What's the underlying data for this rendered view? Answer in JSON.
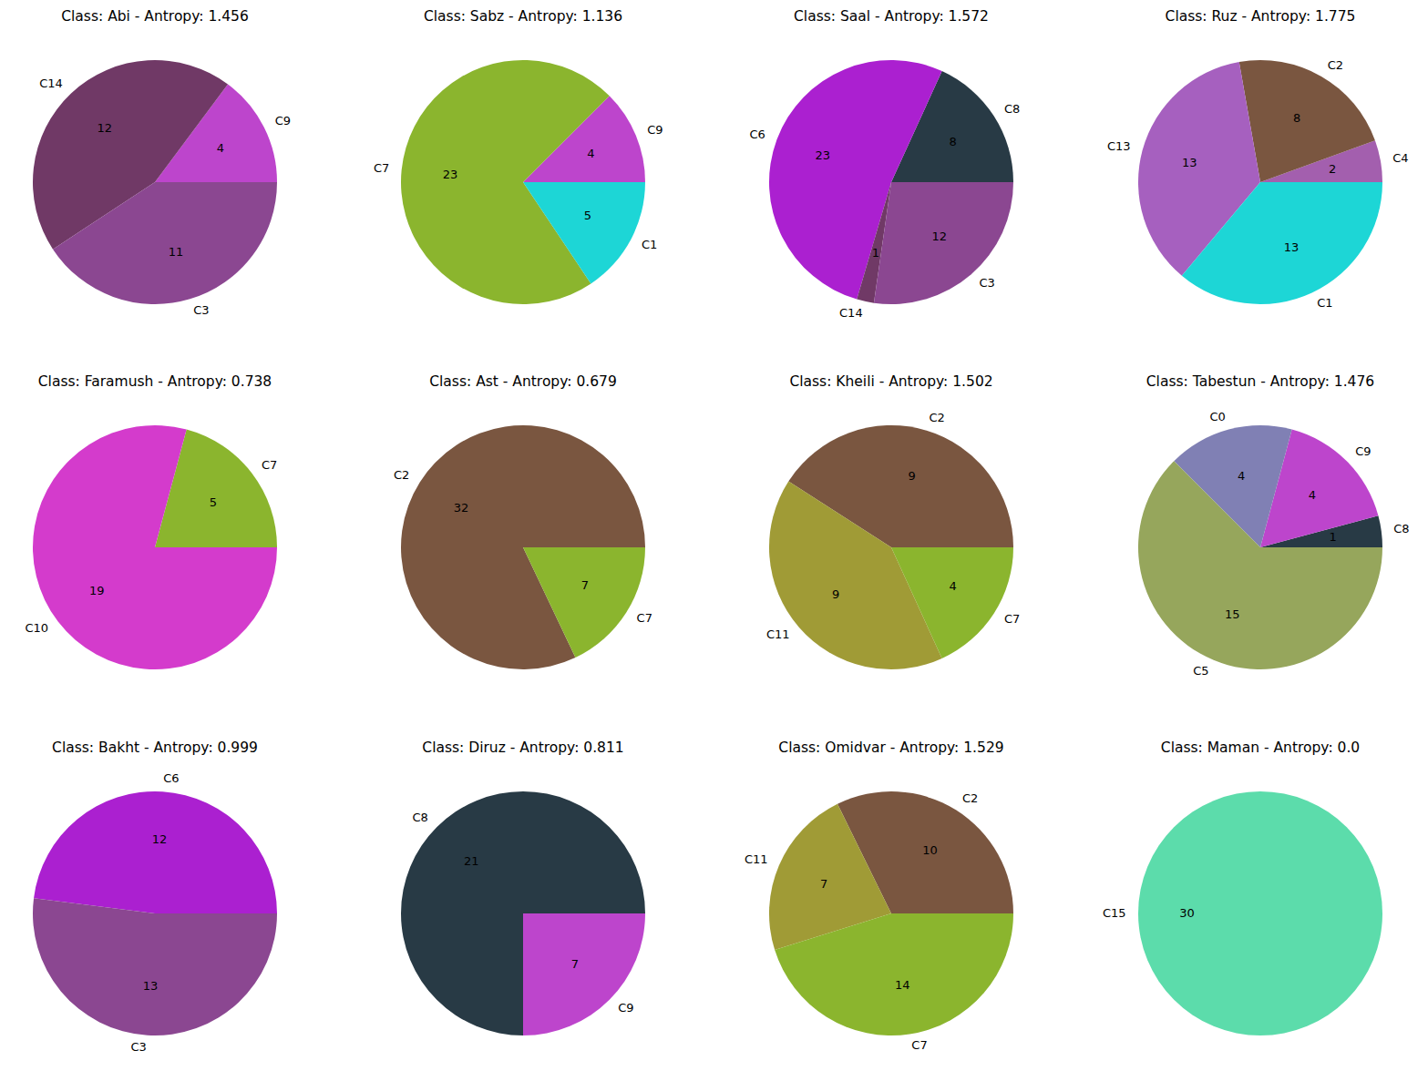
{
  "chart_data": [
    {
      "type": "pie",
      "title": "Class: Abi - Antropy: 1.456",
      "categories": [
        "C9",
        "C14",
        "C3"
      ],
      "values": [
        4,
        12,
        11
      ],
      "colors": [
        "#bd45cc",
        "#703966",
        "#8b4791"
      ],
      "data_labels": true
    },
    {
      "type": "pie",
      "title": "Class: Sabz - Antropy: 1.136",
      "categories": [
        "C9",
        "C7",
        "C1"
      ],
      "values": [
        4,
        23,
        5
      ],
      "colors": [
        "#bd45cc",
        "#8bb52e",
        "#1dd6d6"
      ],
      "data_labels": true
    },
    {
      "type": "pie",
      "title": "Class: Saal - Antropy: 1.572",
      "categories": [
        "C8",
        "C6",
        "C14",
        "C3"
      ],
      "values": [
        8,
        23,
        1,
        12
      ],
      "colors": [
        "#283a45",
        "#ab20d0",
        "#703966",
        "#8b4791"
      ],
      "data_labels": true
    },
    {
      "type": "pie",
      "title": "Class: Ruz - Antropy: 1.775",
      "categories": [
        "C4",
        "C2",
        "C13",
        "C1"
      ],
      "values": [
        2,
        8,
        13,
        13
      ],
      "colors": [
        "#a35fae",
        "#7a5640",
        "#a660bf",
        "#1dd6d6"
      ],
      "data_labels": true
    },
    {
      "type": "pie",
      "title": "Class: Faramush - Antropy: 0.738",
      "categories": [
        "C7",
        "C10"
      ],
      "values": [
        5,
        19
      ],
      "colors": [
        "#8bb52e",
        "#d43bcc"
      ],
      "data_labels": true
    },
    {
      "type": "pie",
      "title": "Class: Ast - Antropy: 0.679",
      "categories": [
        "C2",
        "C7"
      ],
      "values": [
        32,
        7
      ],
      "colors": [
        "#7a5640",
        "#8bb52e"
      ],
      "data_labels": true
    },
    {
      "type": "pie",
      "title": "Class: Kheili - Antropy: 1.502",
      "categories": [
        "C2",
        "C11",
        "C7"
      ],
      "values": [
        9,
        9,
        4
      ],
      "colors": [
        "#7a5640",
        "#a09b36",
        "#8bb52e"
      ],
      "data_labels": true
    },
    {
      "type": "pie",
      "title": "Class: Tabestun - Antropy: 1.476",
      "categories": [
        "C8",
        "C9",
        "C0",
        "C5"
      ],
      "values": [
        1,
        4,
        4,
        15
      ],
      "colors": [
        "#283a45",
        "#bd45cc",
        "#8080b4",
        "#96a65c"
      ],
      "data_labels": true
    },
    {
      "type": "pie",
      "title": "Class: Bakht - Antropy: 0.999",
      "categories": [
        "C6",
        "C3"
      ],
      "values": [
        12,
        13
      ],
      "colors": [
        "#ab20d0",
        "#8b4791"
      ],
      "data_labels": true
    },
    {
      "type": "pie",
      "title": "Class: Diruz - Antropy: 0.811",
      "categories": [
        "C8",
        "C9"
      ],
      "values": [
        21,
        7
      ],
      "colors": [
        "#283a45",
        "#bd45cc"
      ],
      "data_labels": true
    },
    {
      "type": "pie",
      "title": "Class: Omidvar - Antropy: 1.529",
      "categories": [
        "C2",
        "C11",
        "C7"
      ],
      "values": [
        10,
        7,
        14
      ],
      "colors": [
        "#7a5640",
        "#a09b36",
        "#8bb52e"
      ],
      "data_labels": true
    },
    {
      "type": "pie",
      "title": "Class: Maman - Antropy: 0.0",
      "categories": [
        "C15"
      ],
      "values": [
        30
      ],
      "colors": [
        "#5cdcab"
      ],
      "data_labels": true
    }
  ]
}
